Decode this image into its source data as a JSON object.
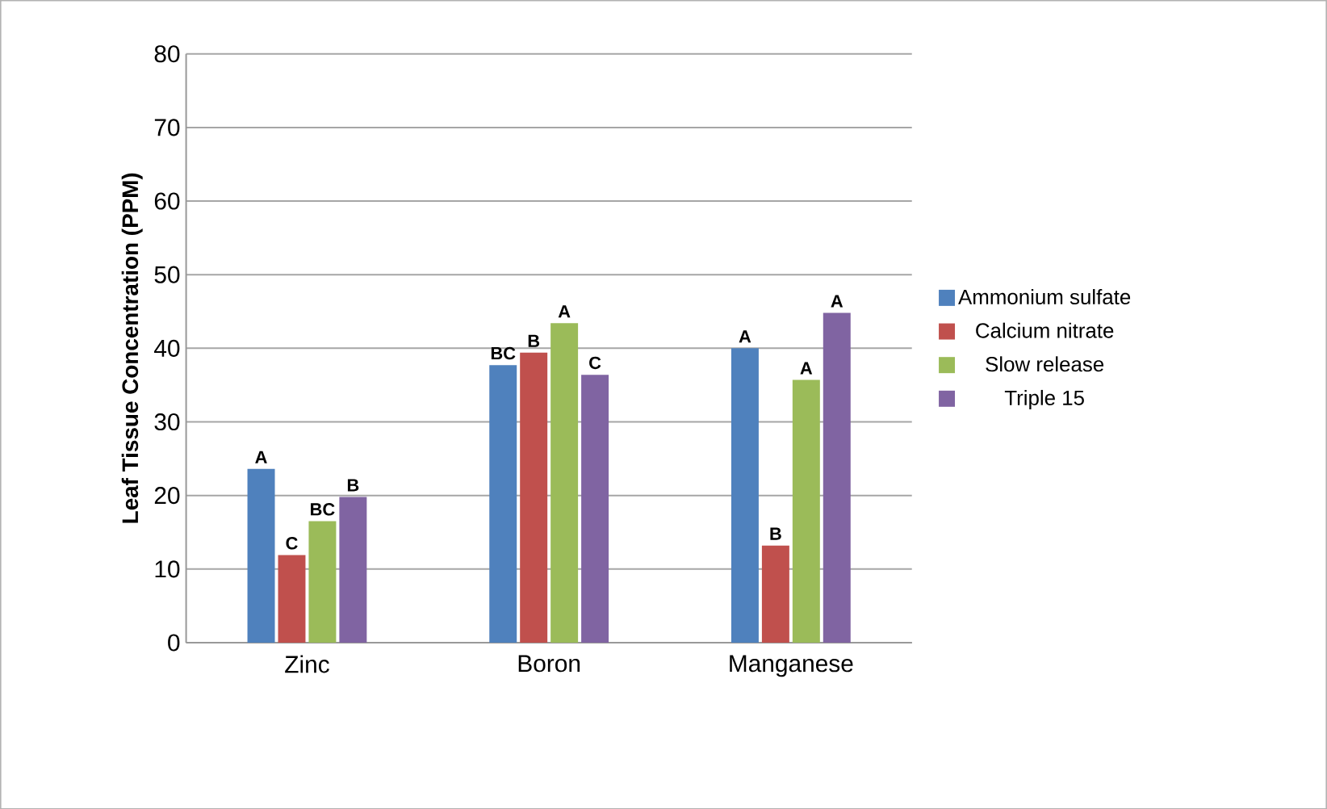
{
  "chart_data": {
    "type": "bar",
    "ylabel": "Leaf Tissue Concentration (PPM)",
    "categories": [
      "Zinc",
      "Boron",
      "Manganese"
    ],
    "series": [
      {
        "name": "Ammonium sulfate",
        "color": "#4f81bd",
        "values": [
          23.6,
          37.7,
          40.0
        ],
        "value_labels": [
          "A",
          "BC",
          "A"
        ]
      },
      {
        "name": "Calcium nitrate",
        "color": "#c0504d",
        "values": [
          11.9,
          39.4,
          13.2
        ],
        "value_labels": [
          "C",
          "B",
          "B"
        ]
      },
      {
        "name": "Slow release",
        "color": "#9bbb59",
        "values": [
          16.5,
          43.4,
          35.7
        ],
        "value_labels": [
          "BC",
          "A",
          "A"
        ]
      },
      {
        "name": "Triple 15",
        "color": "#8064a2",
        "values": [
          19.8,
          36.4,
          44.8
        ],
        "value_labels": [
          "B",
          "C",
          "A"
        ]
      }
    ],
    "ylim": [
      0,
      80
    ],
    "yticks": [
      0,
      10,
      20,
      30,
      40,
      50,
      60,
      70,
      80
    ],
    "grid": "y",
    "legend": "right"
  }
}
